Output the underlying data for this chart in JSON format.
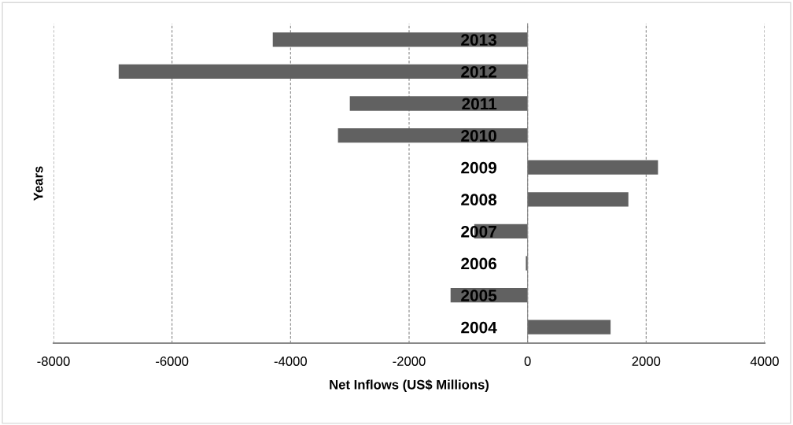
{
  "chart_data": {
    "type": "bar",
    "orientation": "horizontal",
    "xlabel": "Net Inflows (US$ Millions)",
    "ylabel": "Years",
    "categories": [
      "2013",
      "2012",
      "2011",
      "2010",
      "2009",
      "2008",
      "2007",
      "2006",
      "2005",
      "2004"
    ],
    "values": [
      -4300,
      -6900,
      -3000,
      -3200,
      2200,
      1700,
      -900,
      -30,
      -1300,
      1400
    ],
    "color": "#616161",
    "xlim": [
      -8000,
      4000
    ],
    "xticks": [
      -8000,
      -6000,
      -4000,
      -2000,
      0,
      2000,
      4000
    ],
    "grid": "x"
  }
}
